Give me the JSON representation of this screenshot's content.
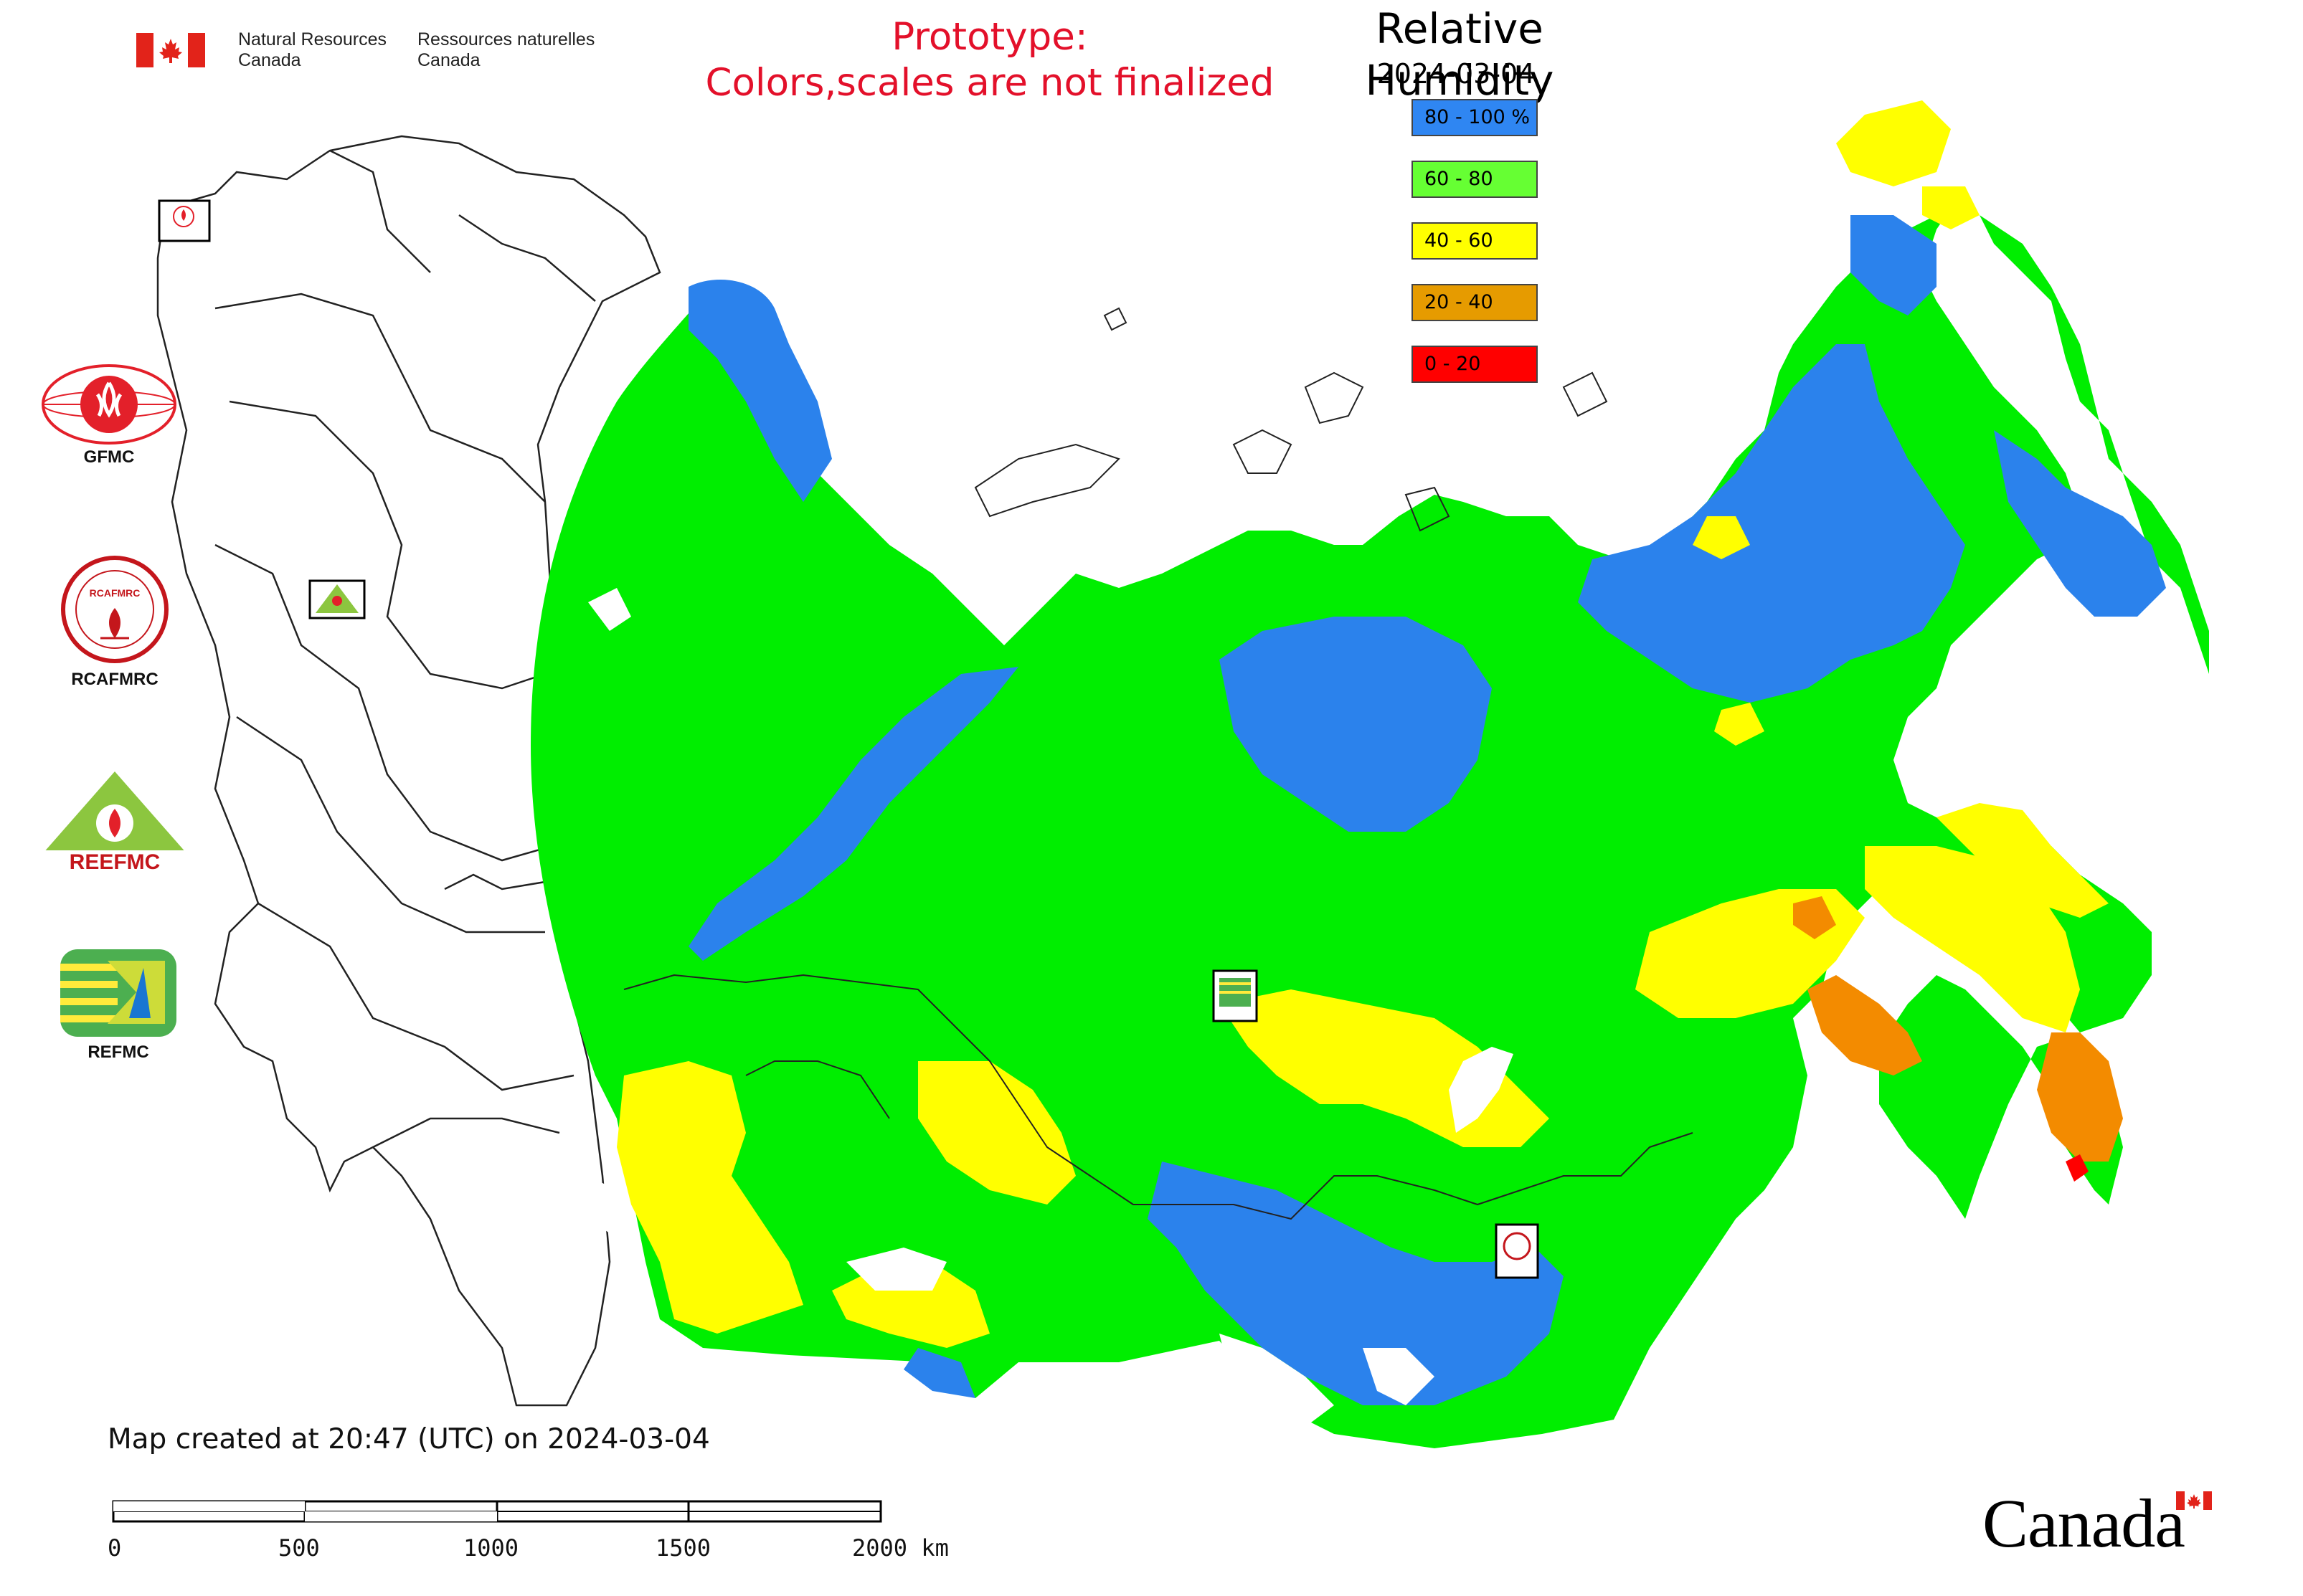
{
  "header": {
    "org_en_line1": "Natural Resources",
    "org_en_line2": "Canada",
    "org_fr_line1": "Ressources naturelles",
    "org_fr_line2": "Canada"
  },
  "notice": {
    "line1": "Prototype:",
    "line2": "Colors,scales are not finalized"
  },
  "map": {
    "title": "Relative Humidity",
    "date": "2024-03-04",
    "legend": [
      {
        "label": "80 - 100 %",
        "color": "#2f86f2"
      },
      {
        "label": "60 - 80",
        "color": "#66ff33"
      },
      {
        "label": "40 - 60",
        "color": "#ffff00"
      },
      {
        "label": "20 - 40",
        "color": "#e69b00"
      },
      {
        "label": "0 - 20",
        "color": "#ff0000"
      }
    ],
    "fill_colors": {
      "very_humid": "#2b82ec",
      "humid": "#00ee00",
      "moderate": "#ffff00",
      "dry": "#f38b00",
      "very_dry": "#ff0000",
      "no_data": "#ffffff",
      "border": "#222222"
    },
    "station_markers": [
      "GFMC",
      "REEFMC",
      "REFMC",
      "RCAFMRC"
    ]
  },
  "partners": [
    {
      "label": "GFMC",
      "icon": "gfmc-logo-icon",
      "color": "#e3202a"
    },
    {
      "label": "RCAFMRC",
      "icon": "rcafmrc-logo-icon",
      "color": "#c4161c"
    },
    {
      "label": "",
      "icon": "reefmc-logo-icon",
      "color": "#8cc63f",
      "logo_text": "REEFMC"
    },
    {
      "label": "REFMC",
      "icon": "refmc-logo-icon",
      "color": "#4caf50"
    }
  ],
  "footer": {
    "created_note": "Map created at 20:47 (UTC) on 2024-03-04",
    "scale_ticks": [
      "0",
      "500",
      "1000",
      "1500",
      "2000 km"
    ],
    "wordmark": "Canada"
  }
}
